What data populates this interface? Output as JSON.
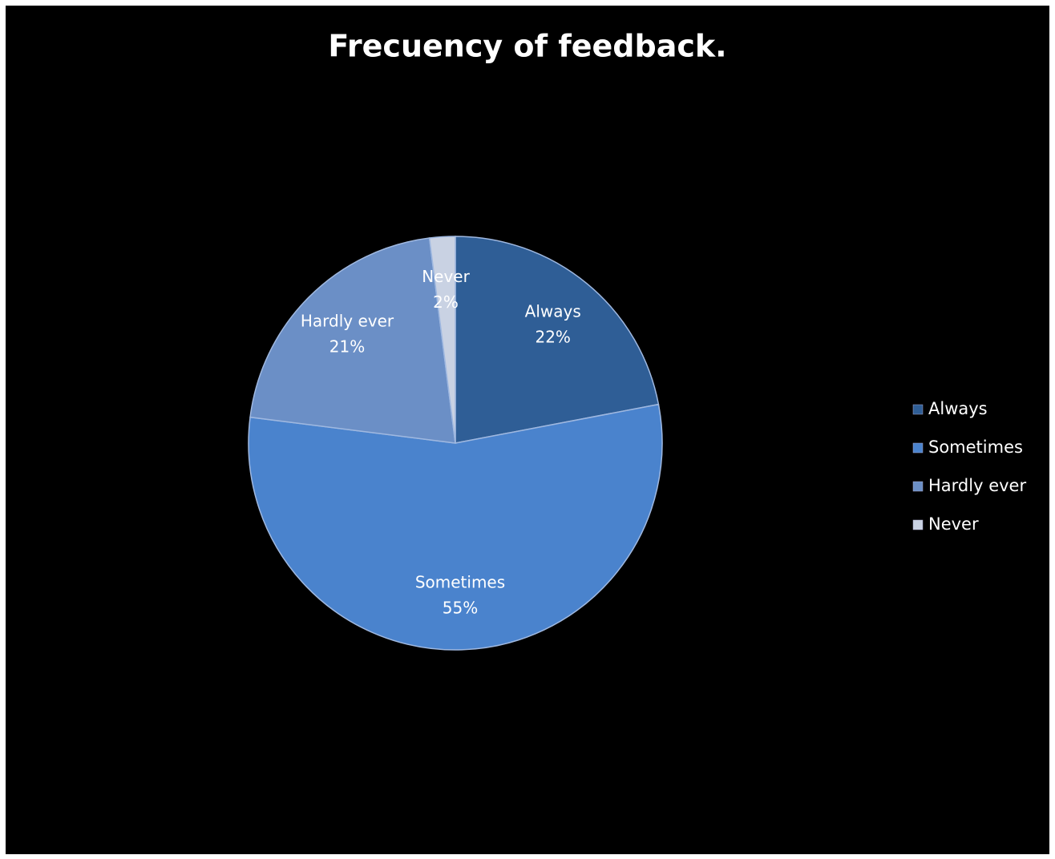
{
  "chart_data": {
    "type": "pie",
    "title": "Frecuency of feedback.",
    "categories": [
      "Always",
      "Sometimes",
      "Hardly ever",
      "Never"
    ],
    "values": [
      22,
      55,
      21,
      2
    ],
    "value_labels": [
      "22%",
      "55%",
      "21%",
      "2%"
    ],
    "colors": [
      "#2f5e96",
      "#4a83cd",
      "#6b8fc6",
      "#c9d2e3"
    ],
    "legend": "right"
  }
}
